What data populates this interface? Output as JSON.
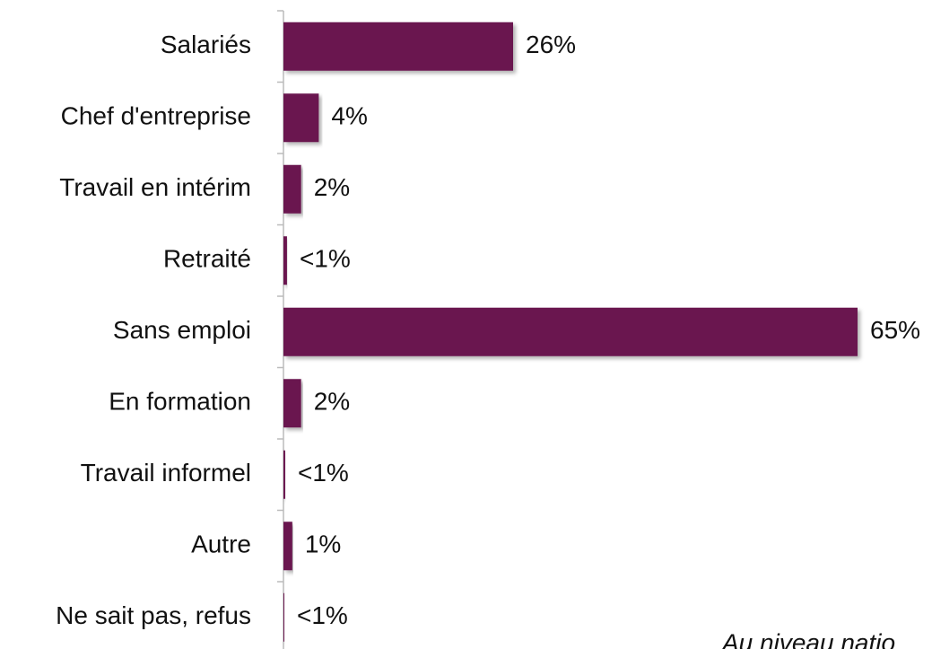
{
  "chart_data": {
    "type": "bar",
    "orientation": "horizontal",
    "categories": [
      "Salariés",
      "Chef d'entreprise",
      "Travail en intérim",
      "Retraité",
      "Sans emploi",
      "En formation",
      "Travail informel",
      "Autre",
      "Ne sait pas, refus"
    ],
    "values": [
      26,
      4,
      2,
      0.4,
      65,
      2,
      0.2,
      1,
      0.1
    ],
    "value_labels": [
      "26%",
      "4%",
      "2%",
      "<1%",
      "65%",
      "2%",
      "<1%",
      "1%",
      "<1%"
    ],
    "color": "#6b1850",
    "annotation": "Au niveau natio"
  }
}
